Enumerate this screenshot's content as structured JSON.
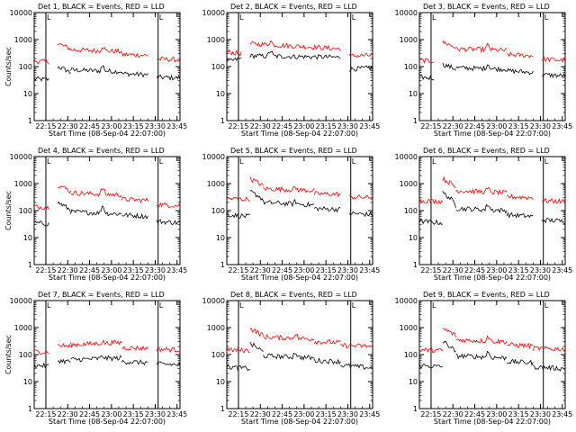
{
  "chart_data": [
    {
      "type": "line",
      "title": "Det 1, BLACK = Events, RED = LLD",
      "ylabel": "Counts/sec",
      "xlabel": "Start Time (08-Sep-04 22:07:00)",
      "x_ticks": [
        "22:15",
        "22:30",
        "22:45",
        "23:00",
        "23:15",
        "23:30",
        "23:45"
      ],
      "y_ticks": [
        "1",
        "10",
        "100",
        "1000",
        "10000"
      ],
      "yscale": "log",
      "ylim": [
        1,
        10000
      ],
      "markers": [
        "22:15",
        "23:32"
      ],
      "marker_labels": [
        "L",
        "L"
      ],
      "series": [
        {
          "color": "#000000",
          "gaps": [
            [
              0.1,
              0.16
            ],
            [
              0.78,
              0.84
            ]
          ],
          "segments": [
            [
              0.0,
              0.1,
              35,
              33
            ],
            [
              0.16,
              0.25,
              100,
              60
            ],
            [
              0.25,
              0.6,
              75,
              65
            ],
            [
              0.6,
              0.78,
              55,
              50
            ],
            [
              0.84,
              1.0,
              40,
              38
            ]
          ],
          "spike": [
            0.47,
            110
          ]
        },
        {
          "color": "#ff0000",
          "gaps": [
            [
              0.1,
              0.16
            ],
            [
              0.78,
              0.84
            ]
          ],
          "segments": [
            [
              0.0,
              0.1,
              160,
              150
            ],
            [
              0.16,
              0.25,
              700,
              450
            ],
            [
              0.25,
              0.6,
              420,
              360
            ],
            [
              0.6,
              0.78,
              280,
              260
            ],
            [
              0.84,
              1.0,
              190,
              180
            ]
          ],
          "spike": [
            0.47,
            600
          ]
        }
      ]
    },
    {
      "type": "line",
      "title": "Det 2, BLACK = Events, RED = LLD",
      "ylabel": "",
      "xlabel": "Start Time (08-Sep-04 22:07:00)",
      "x_ticks": [
        "22:15",
        "22:30",
        "22:45",
        "23:00",
        "23:15",
        "23:30",
        "23:45"
      ],
      "y_ticks": [
        "1",
        "10",
        "100",
        "1000",
        "10000"
      ],
      "yscale": "log",
      "ylim": [
        1,
        10000
      ],
      "markers": [
        "22:15",
        "23:32"
      ],
      "marker_labels": [
        "L",
        "L"
      ],
      "series": [
        {
          "color": "#000000",
          "gaps": [
            [
              0.1,
              0.16
            ],
            [
              0.78,
              0.84
            ]
          ],
          "segments": [
            [
              0.0,
              0.1,
              150,
              200
            ],
            [
              0.16,
              0.78,
              250,
              220
            ],
            [
              0.84,
              1.0,
              80,
              90
            ]
          ],
          "spike": [
            0.3,
            400
          ]
        },
        {
          "color": "#ff0000",
          "gaps": [
            [
              0.1,
              0.16
            ],
            [
              0.78,
              0.84
            ]
          ],
          "segments": [
            [
              0.0,
              0.1,
              350,
              300
            ],
            [
              0.16,
              0.78,
              700,
              450
            ],
            [
              0.84,
              1.0,
              250,
              260
            ]
          ],
          "spike": [
            0.3,
            900
          ]
        }
      ]
    },
    {
      "type": "line",
      "title": "Det 3, BLACK = Events, RED = LLD",
      "ylabel": "",
      "xlabel": "Start Time (08-Sep-04 22:07:00)",
      "x_ticks": [
        "22:15",
        "22:30",
        "22:45",
        "23:00",
        "23:15",
        "23:30",
        "23:45"
      ],
      "y_ticks": [
        "1",
        "10",
        "100",
        "1000",
        "10000"
      ],
      "yscale": "log",
      "ylim": [
        1,
        10000
      ],
      "markers": [
        "22:15",
        "23:32"
      ],
      "marker_labels": [
        "L",
        "L"
      ],
      "series": [
        {
          "color": "#000000",
          "gaps": [
            [
              0.1,
              0.16
            ],
            [
              0.78,
              0.84
            ]
          ],
          "segments": [
            [
              0.0,
              0.1,
              40,
              38
            ],
            [
              0.16,
              0.25,
              120,
              80
            ],
            [
              0.25,
              0.6,
              90,
              80
            ],
            [
              0.6,
              0.78,
              70,
              60
            ],
            [
              0.84,
              1.0,
              50,
              45
            ]
          ],
          "spike": [
            0.47,
            130
          ]
        },
        {
          "color": "#ff0000",
          "gaps": [
            [
              0.1,
              0.16
            ],
            [
              0.78,
              0.84
            ]
          ],
          "segments": [
            [
              0.0,
              0.1,
              170,
              160
            ],
            [
              0.16,
              0.25,
              800,
              500
            ],
            [
              0.25,
              0.6,
              450,
              400
            ],
            [
              0.6,
              0.78,
              280,
              250
            ],
            [
              0.84,
              1.0,
              190,
              170
            ]
          ],
          "spike": [
            0.47,
            650
          ]
        }
      ]
    },
    {
      "type": "line",
      "title": "Det 4, BLACK = Events, RED = LLD",
      "ylabel": "Counts/sec",
      "xlabel": "Start Time (08-Sep-04 22:07:00)",
      "x_ticks": [
        "22:15",
        "22:30",
        "22:45",
        "23:00",
        "23:15",
        "23:30",
        "23:45"
      ],
      "y_ticks": [
        "1",
        "10",
        "100",
        "1000",
        "10000"
      ],
      "yscale": "log",
      "ylim": [
        1,
        10000
      ],
      "markers": [
        "22:15",
        "23:32"
      ],
      "marker_labels": [
        "L",
        "L"
      ],
      "series": [
        {
          "color": "#000000",
          "gaps": [
            [
              0.1,
              0.16
            ],
            [
              0.78,
              0.84
            ]
          ],
          "segments": [
            [
              0.0,
              0.1,
              35,
              32
            ],
            [
              0.16,
              0.25,
              200,
              100
            ],
            [
              0.25,
              0.6,
              90,
              75
            ],
            [
              0.6,
              0.78,
              70,
              60
            ],
            [
              0.84,
              1.0,
              40,
              35
            ]
          ],
          "spike": [
            0.47,
            160
          ]
        },
        {
          "color": "#ff0000",
          "gaps": [
            [
              0.1,
              0.16
            ],
            [
              0.78,
              0.84
            ]
          ],
          "segments": [
            [
              0.0,
              0.1,
              140,
              130
            ],
            [
              0.16,
              0.25,
              900,
              500
            ],
            [
              0.25,
              0.6,
              450,
              380
            ],
            [
              0.6,
              0.78,
              260,
              240
            ],
            [
              0.84,
              1.0,
              170,
              150
            ]
          ],
          "spike": [
            0.47,
            700
          ]
        }
      ]
    },
    {
      "type": "line",
      "title": "Det 5, BLACK = Events, RED = LLD",
      "ylabel": "",
      "xlabel": "Start Time (08-Sep-04 22:07:00)",
      "x_ticks": [
        "22:15",
        "22:30",
        "22:45",
        "23:00",
        "23:15",
        "23:30",
        "23:45"
      ],
      "y_ticks": [
        "1",
        "10",
        "100",
        "1000",
        "10000"
      ],
      "yscale": "log",
      "ylim": [
        1,
        10000
      ],
      "markers": [
        "22:15",
        "23:32"
      ],
      "marker_labels": [
        "L",
        "L"
      ],
      "series": [
        {
          "color": "#000000",
          "gaps": [
            [
              0.78,
              0.84
            ]
          ],
          "segments": [
            [
              0.0,
              0.16,
              70,
              60
            ],
            [
              0.16,
              0.25,
              500,
              250
            ],
            [
              0.25,
              0.6,
              200,
              160
            ],
            [
              0.6,
              0.78,
              120,
              110
            ],
            [
              0.84,
              1.0,
              80,
              70
            ]
          ],
          "spike": [
            0.47,
            220
          ]
        },
        {
          "color": "#ff0000",
          "gaps": [
            [
              0.78,
              0.84
            ]
          ],
          "segments": [
            [
              0.0,
              0.16,
              280,
              260
            ],
            [
              0.16,
              0.25,
              1500,
              800
            ],
            [
              0.25,
              0.6,
              650,
              550
            ],
            [
              0.6,
              0.78,
              420,
              400
            ],
            [
              0.84,
              1.0,
              320,
              300
            ]
          ],
          "spike": [
            0.47,
            700
          ]
        }
      ]
    },
    {
      "type": "line",
      "title": "Det 6, BLACK = Events, RED = LLD",
      "ylabel": "",
      "xlabel": "Start Time (08-Sep-04 22:07:00)",
      "x_ticks": [
        "22:15",
        "22:30",
        "22:45",
        "23:00",
        "23:15",
        "23:30",
        "23:45"
      ],
      "y_ticks": [
        "1",
        "10",
        "100",
        "1000",
        "10000"
      ],
      "yscale": "log",
      "ylim": [
        1,
        10000
      ],
      "markers": [
        "22:15",
        "23:32"
      ],
      "marker_labels": [
        "L",
        "L"
      ],
      "series": [
        {
          "color": "#000000",
          "gaps": [
            [
              0.78,
              0.84
            ]
          ],
          "segments": [
            [
              0.0,
              0.16,
              40,
              35
            ],
            [
              0.16,
              0.25,
              450,
              150
            ],
            [
              0.25,
              0.6,
              120,
              100
            ],
            [
              0.6,
              0.78,
              70,
              60
            ],
            [
              0.84,
              1.0,
              45,
              40
            ]
          ],
          "spike": [
            0.47,
            180
          ]
        },
        {
          "color": "#ff0000",
          "gaps": [
            [
              0.78,
              0.84
            ]
          ],
          "segments": [
            [
              0.0,
              0.16,
              230,
              220
            ],
            [
              0.16,
              0.25,
              1500,
              700
            ],
            [
              0.25,
              0.6,
              550,
              450
            ],
            [
              0.6,
              0.78,
              330,
              300
            ],
            [
              0.84,
              1.0,
              230,
              220
            ]
          ],
          "spike": [
            0.47,
            650
          ]
        }
      ]
    },
    {
      "type": "line",
      "title": "Det 7, BLACK = Events, RED = LLD",
      "ylabel": "Counts/sec",
      "xlabel": "Start Time (08-Sep-04 22:07:00)",
      "x_ticks": [
        "22:15",
        "22:30",
        "22:45",
        "23:00",
        "23:15",
        "23:30",
        "23:45"
      ],
      "y_ticks": [
        "1",
        "10",
        "100",
        "1000",
        "10000"
      ],
      "yscale": "log",
      "ylim": [
        1,
        10000
      ],
      "markers": [
        "22:15",
        "23:32"
      ],
      "marker_labels": [
        "L",
        "L"
      ],
      "series": [
        {
          "color": "#000000",
          "gaps": [
            [
              0.1,
              0.16
            ],
            [
              0.78,
              0.84
            ]
          ],
          "segments": [
            [
              0.0,
              0.1,
              40,
              38
            ],
            [
              0.16,
              0.25,
              60,
              55
            ],
            [
              0.25,
              0.6,
              65,
              75
            ],
            [
              0.6,
              0.78,
              55,
              50
            ],
            [
              0.84,
              1.0,
              45,
              42
            ]
          ],
          "spike": [
            0.47,
            90
          ]
        },
        {
          "color": "#ff0000",
          "gaps": [
            [
              0.1,
              0.16
            ],
            [
              0.78,
              0.84
            ]
          ],
          "segments": [
            [
              0.0,
              0.1,
              130,
              125
            ],
            [
              0.16,
              0.25,
              220,
              200
            ],
            [
              0.25,
              0.6,
              230,
              280
            ],
            [
              0.6,
              0.78,
              180,
              170
            ],
            [
              0.84,
              1.0,
              160,
              150
            ]
          ],
          "spike": [
            0.47,
            300
          ]
        }
      ]
    },
    {
      "type": "line",
      "title": "Det 8, BLACK = Events, RED = LLD",
      "ylabel": "",
      "xlabel": "Start Time (08-Sep-04 22:07:00)",
      "x_ticks": [
        "22:15",
        "22:30",
        "22:45",
        "23:00",
        "23:15",
        "23:30",
        "23:45"
      ],
      "y_ticks": [
        "1",
        "10",
        "100",
        "1000",
        "10000"
      ],
      "yscale": "log",
      "ylim": [
        1,
        10000
      ],
      "markers": [
        "22:15",
        "23:32"
      ],
      "marker_labels": [
        "L",
        "L"
      ],
      "series": [
        {
          "color": "#000000",
          "gaps": [],
          "segments": [
            [
              0.0,
              0.16,
              35,
              30
            ],
            [
              0.16,
              0.25,
              250,
              120
            ],
            [
              0.25,
              0.6,
              90,
              75
            ],
            [
              0.6,
              0.78,
              60,
              55
            ],
            [
              0.78,
              1.0,
              40,
              32
            ]
          ],
          "spike": [
            0.47,
            130
          ]
        },
        {
          "color": "#ff0000",
          "gaps": [],
          "segments": [
            [
              0.0,
              0.16,
              150,
              140
            ],
            [
              0.16,
              0.25,
              900,
              500
            ],
            [
              0.25,
              0.6,
              450,
              380
            ],
            [
              0.6,
              0.78,
              300,
              280
            ],
            [
              0.78,
              1.0,
              220,
              200
            ]
          ],
          "spike": [
            0.47,
            600
          ]
        }
      ]
    },
    {
      "type": "line",
      "title": "Det 9, BLACK = Events, RED = LLD",
      "ylabel": "",
      "xlabel": "Start Time (08-Sep-04 22:07:00)",
      "x_ticks": [
        "22:15",
        "22:30",
        "22:45",
        "23:00",
        "23:15",
        "23:30",
        "23:45"
      ],
      "y_ticks": [
        "1",
        "10",
        "100",
        "1000",
        "10000"
      ],
      "yscale": "log",
      "ylim": [
        1,
        10000
      ],
      "markers": [
        "22:15",
        "23:32"
      ],
      "marker_labels": [
        "L",
        "L"
      ],
      "series": [
        {
          "color": "#000000",
          "gaps": [],
          "segments": [
            [
              0.0,
              0.16,
              40,
              35
            ],
            [
              0.16,
              0.25,
              300,
              120
            ],
            [
              0.25,
              0.6,
              90,
              75
            ],
            [
              0.6,
              0.78,
              55,
              50
            ],
            [
              0.78,
              1.0,
              35,
              30
            ]
          ],
          "spike": [
            0.47,
            130
          ]
        },
        {
          "color": "#ff0000",
          "gaps": [],
          "segments": [
            [
              0.0,
              0.16,
              150,
              140
            ],
            [
              0.16,
              0.25,
              900,
              500
            ],
            [
              0.25,
              0.6,
              350,
              300
            ],
            [
              0.6,
              0.78,
              230,
              210
            ],
            [
              0.78,
              1.0,
              170,
              160
            ]
          ],
          "spike": [
            0.47,
            500
          ]
        }
      ]
    }
  ]
}
